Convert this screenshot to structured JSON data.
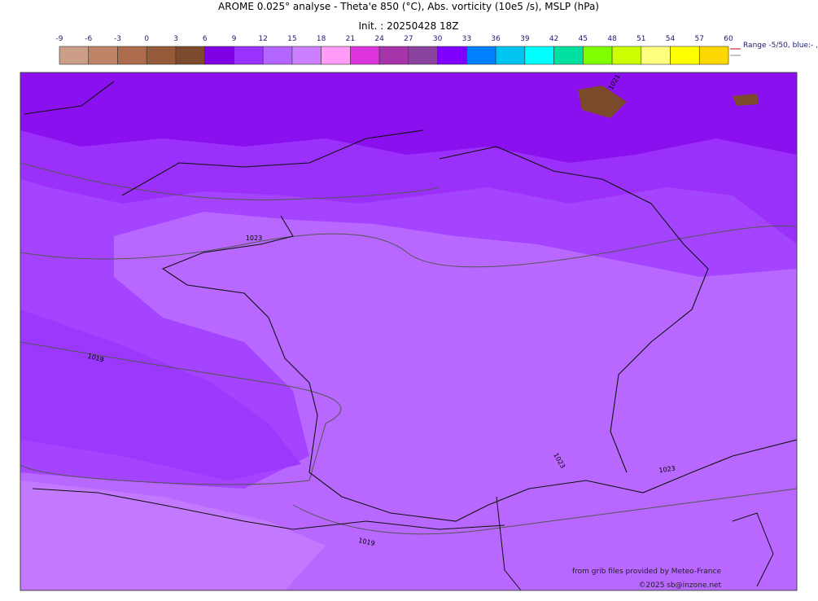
{
  "header": {
    "title": "AROME 0.025° analyse - Theta'e 850 (°C), Abs. vorticity (10e5 /s), MSLP (hPa)",
    "subtitle": "Init. : 20250428 18Z"
  },
  "colorbar": {
    "ticks": [
      -9,
      -6,
      -3,
      0,
      3,
      6,
      9,
      12,
      15,
      18,
      21,
      24,
      27,
      30,
      33,
      36,
      39,
      42,
      45,
      48,
      51,
      54,
      57,
      60
    ],
    "colors": [
      "#cc9e88",
      "#bd8466",
      "#ad6c4c",
      "#955a3a",
      "#7c4a2c",
      "#8000e6",
      "#9a33ff",
      "#b366ff",
      "#cc80ff",
      "#ff9cf8",
      "#dd33dd",
      "#a834aa",
      "#8a44a0",
      "#8000ff",
      "#0080ff",
      "#00c4f0",
      "#00ffff",
      "#00e0a0",
      "#80ff00",
      "#ccff00",
      "#ffff80",
      "#ffff00",
      "#ffd700"
    ],
    "note": "Range -5/50, blue:- , r"
  },
  "map": {
    "isobar_labels": [
      "1021",
      "1023",
      "1019",
      "1023",
      "1023",
      "1019"
    ],
    "credits": [
      "from grib files provided by Meteo-France",
      "©2025 sb@inzone.net"
    ]
  }
}
